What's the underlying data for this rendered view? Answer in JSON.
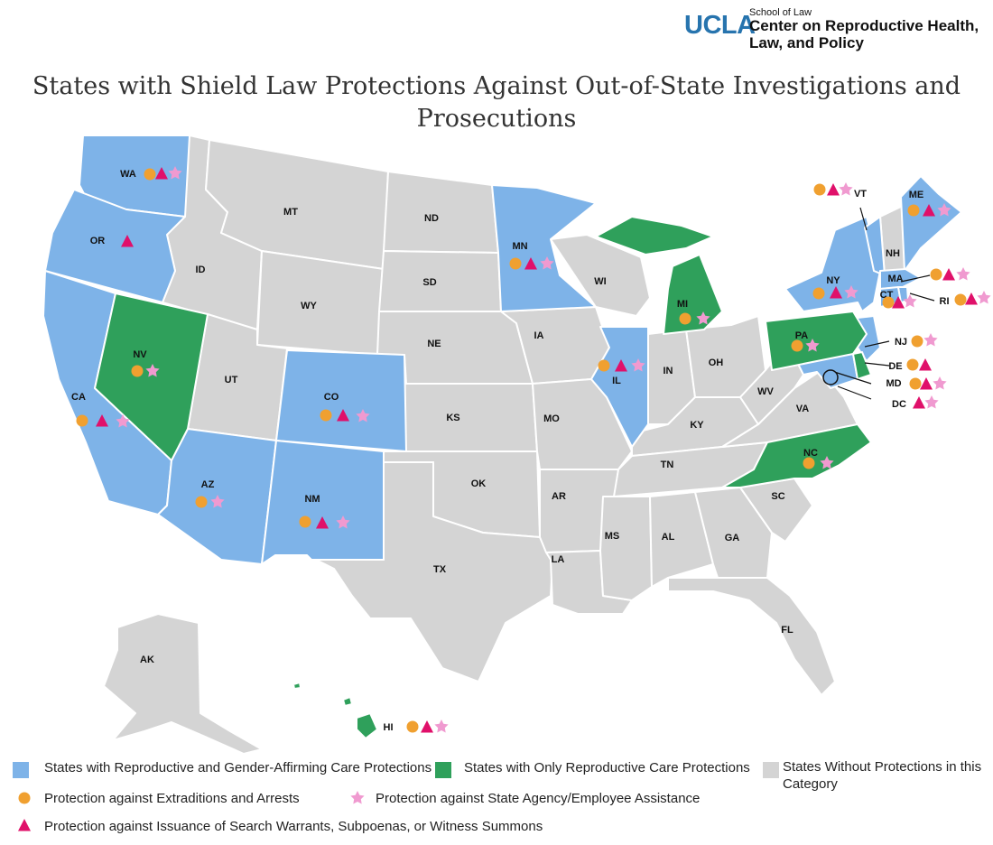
{
  "logo": {
    "ucla": "UCLA",
    "school": "School of Law",
    "center_line1": "Center on Reproductive Health,",
    "center_line2": "Law, and Policy"
  },
  "title": {
    "line1": "States with Shield Law Protections Against Out-of-State Investigations and",
    "line2": "Prosecutions"
  },
  "colors": {
    "both": "#7eb3e8",
    "repro_only": "#2fa05b",
    "none": "#d4d4d4",
    "circle": "#f0a030",
    "triangle": "#e0106a",
    "star": "#f09ad0"
  },
  "legend": {
    "both": "States with Reproductive and Gender-Affirming Care Protections",
    "repro_only": "States with Only Reproductive Care Protections",
    "none_line1": "States Without Protections in this",
    "none_line2": "Category",
    "circle": "Protection against Extraditions and Arrests",
    "star": "Protection against State Agency/Employee Assistance",
    "triangle": "Protection against Issuance of Search Warrants, Subpoenas, or Witness Summons"
  },
  "states": {
    "WA": "WA",
    "OR": "OR",
    "CA": "CA",
    "NV": "NV",
    "ID": "ID",
    "MT": "MT",
    "WY": "WY",
    "UT": "UT",
    "AZ": "AZ",
    "CO": "CO",
    "NM": "NM",
    "ND": "ND",
    "SD": "SD",
    "NE": "NE",
    "KS": "KS",
    "OK": "OK",
    "TX": "TX",
    "MN": "MN",
    "IA": "IA",
    "MO": "MO",
    "AR": "AR",
    "LA": "LA",
    "WI": "WI",
    "IL": "IL",
    "MI": "MI",
    "IN": "IN",
    "OH": "OH",
    "KY": "KY",
    "TN": "TN",
    "MS": "MS",
    "AL": "AL",
    "GA": "GA",
    "FL": "FL",
    "SC": "SC",
    "NC": "NC",
    "VA": "VA",
    "WV": "WV",
    "PA": "PA",
    "NY": "NY",
    "VT": "VT",
    "NH": "NH",
    "ME": "ME",
    "MA": "MA",
    "RI": "RI",
    "CT": "CT",
    "NJ": "NJ",
    "DE": "DE",
    "MD": "MD",
    "DC": "DC",
    "AK": "AK",
    "HI": "HI"
  }
}
